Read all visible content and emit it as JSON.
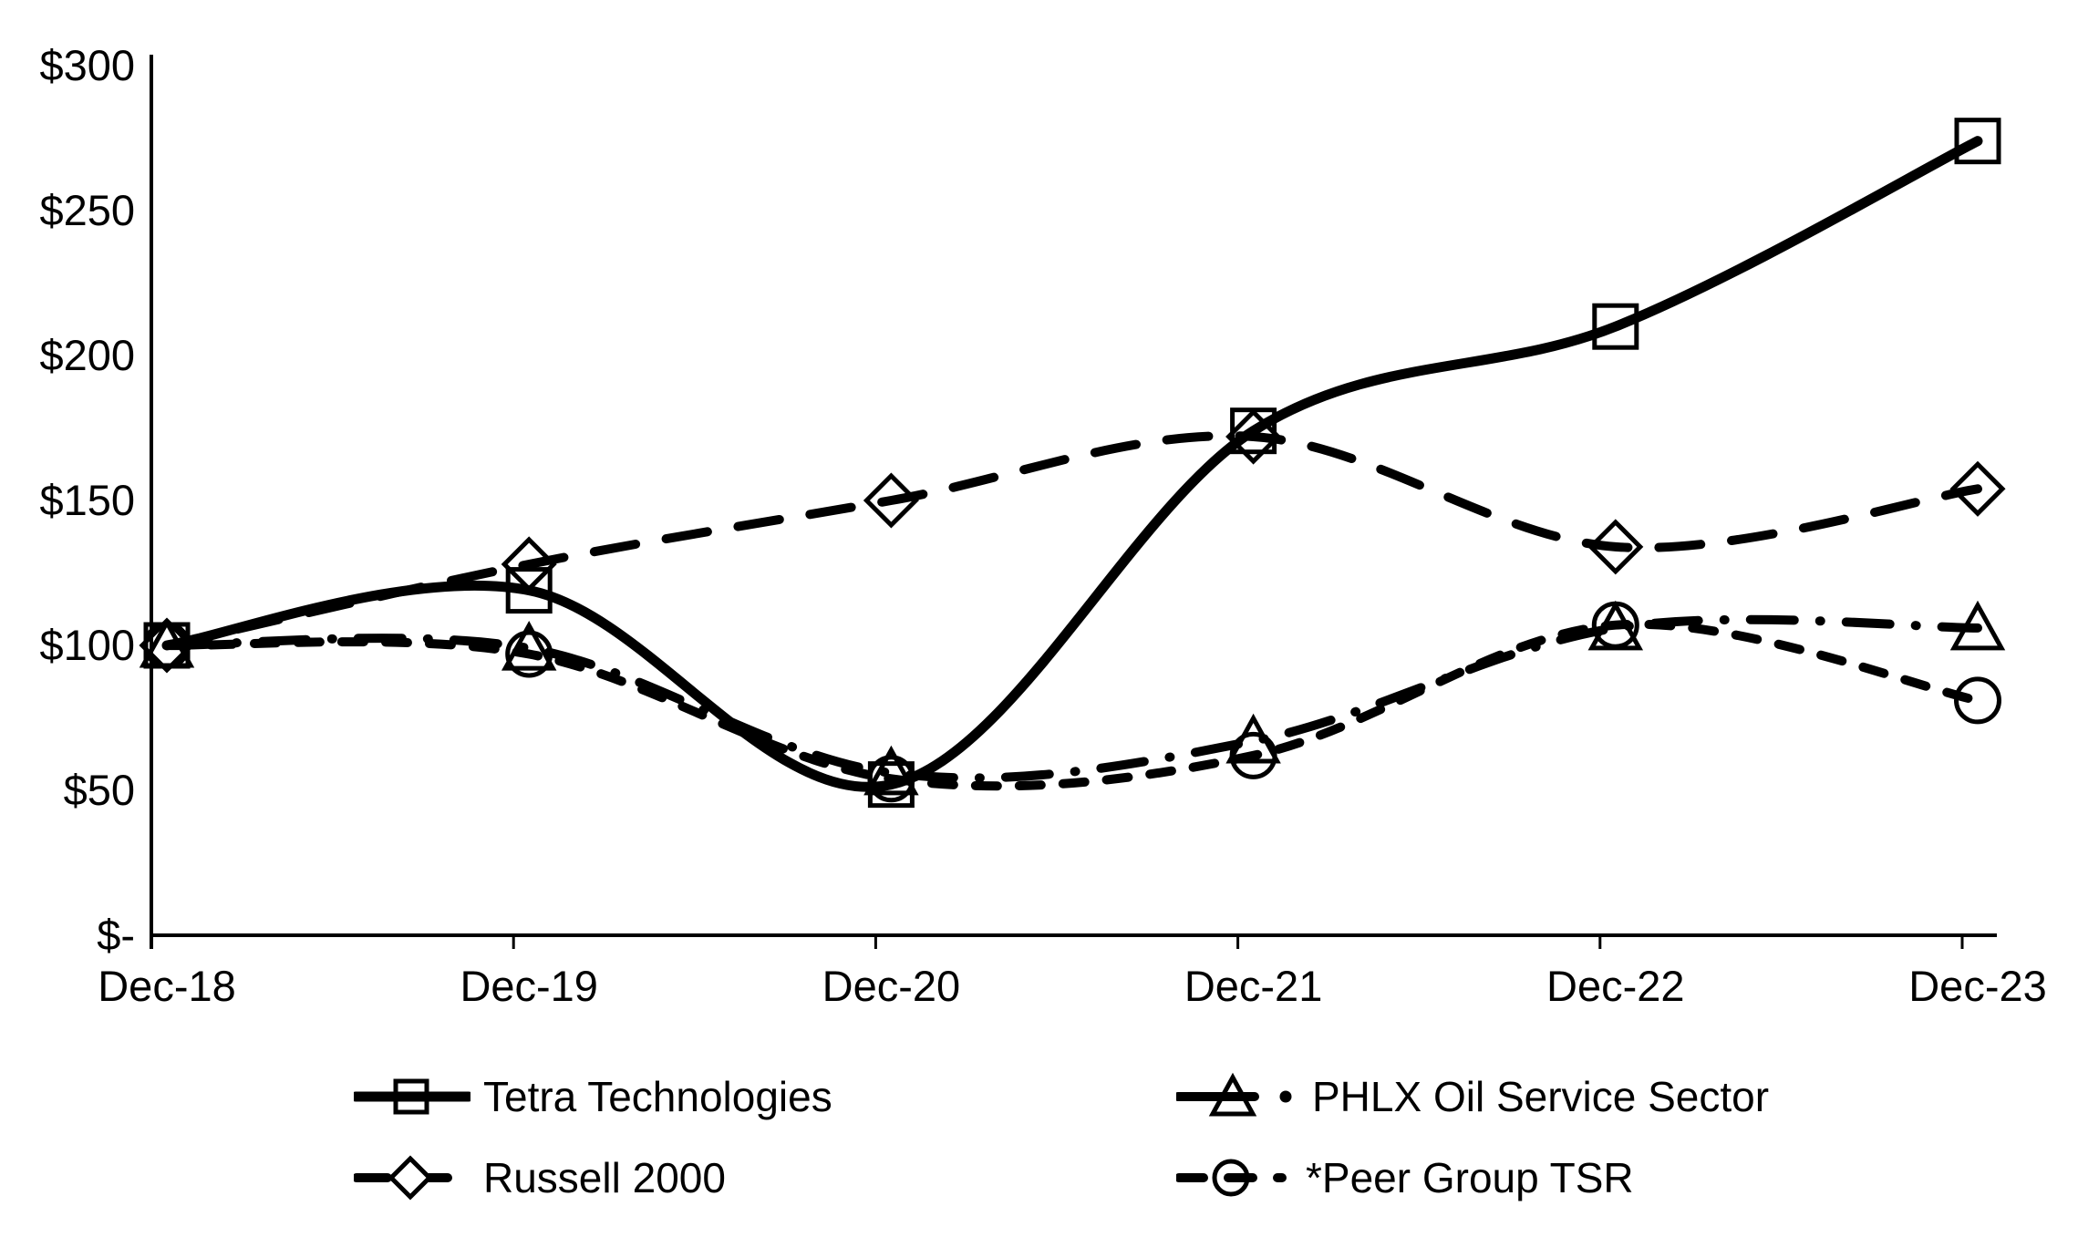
{
  "page": {
    "background": "#ffffff"
  },
  "chart_data": {
    "type": "line",
    "title": "",
    "xlabel": "",
    "ylabel": "",
    "x_categories": [
      "Dec-18",
      "Dec-19",
      "Dec-20",
      "Dec-21",
      "Dec-22",
      "Dec-23"
    ],
    "y_axis": {
      "range": [
        0,
        300
      ],
      "ticks": [
        {
          "value": 300,
          "label": "$300"
        },
        {
          "value": 250,
          "label": "$250"
        },
        {
          "value": 200,
          "label": "$200"
        },
        {
          "value": 150,
          "label": "$150"
        },
        {
          "value": 100,
          "label": "$100"
        },
        {
          "value": 50,
          "label": "$50"
        },
        {
          "value": 0,
          "label": "$-"
        }
      ]
    },
    "grid": "off",
    "legend_position": "bottom-two-columns",
    "line_color": "#000000",
    "background_color": "#ffffff",
    "series": [
      {
        "name": "Tetra Technologies",
        "marker": "square",
        "line_style": "solid",
        "values": [
          100,
          119,
          52,
          174,
          210,
          274
        ]
      },
      {
        "name": "PHLX Oil Service Sector",
        "marker": "triangle",
        "line_style": "dash-dot",
        "values": [
          100,
          99,
          56,
          67,
          106,
          106
        ]
      },
      {
        "name": "Russell 2000",
        "marker": "diamond",
        "line_style": "dashed",
        "values": [
          100,
          128,
          150,
          172,
          134,
          154
        ]
      },
      {
        "name": "*Peer Group TSR",
        "marker": "circle",
        "line_style": "short-dash",
        "values": [
          100,
          97,
          54,
          62,
          107,
          81
        ]
      }
    ]
  }
}
